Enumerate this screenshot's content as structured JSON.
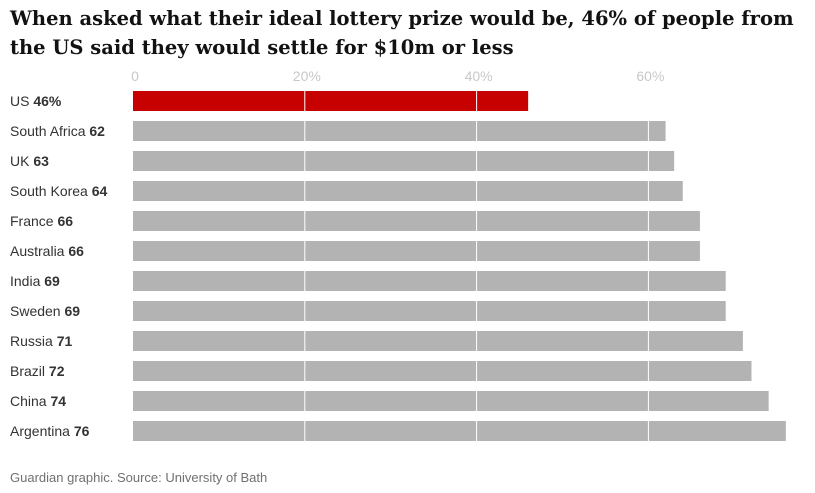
{
  "chart_data": {
    "type": "bar",
    "orientation": "horizontal",
    "title": "When asked what their ideal lottery prize would be, 46% of people from the US said they would settle for $10m or less",
    "xlabel": "",
    "ylabel": "",
    "xlim": [
      0,
      76
    ],
    "ticks": [
      {
        "value": 0,
        "label": "0"
      },
      {
        "value": 20,
        "label": "20%"
      },
      {
        "value": 40,
        "label": "40%"
      },
      {
        "value": 60,
        "label": "60%"
      }
    ],
    "categories": [
      "US",
      "South Africa",
      "UK",
      "South Korea",
      "France",
      "Australia",
      "India",
      "Sweden",
      "Russia",
      "Brazil",
      "China",
      "Argentina"
    ],
    "value_labels": [
      "46%",
      "62",
      "63",
      "64",
      "66",
      "66",
      "69",
      "69",
      "71",
      "72",
      "74",
      "76"
    ],
    "values": [
      46,
      62,
      63,
      64,
      66,
      66,
      69,
      69,
      71,
      72,
      74,
      76
    ],
    "highlight_index": 0,
    "colors": {
      "highlight": "#c70000",
      "bar": "#b3b3b4",
      "grid": "#ffffff"
    },
    "source": "Guardian graphic. Source: University of Bath"
  }
}
